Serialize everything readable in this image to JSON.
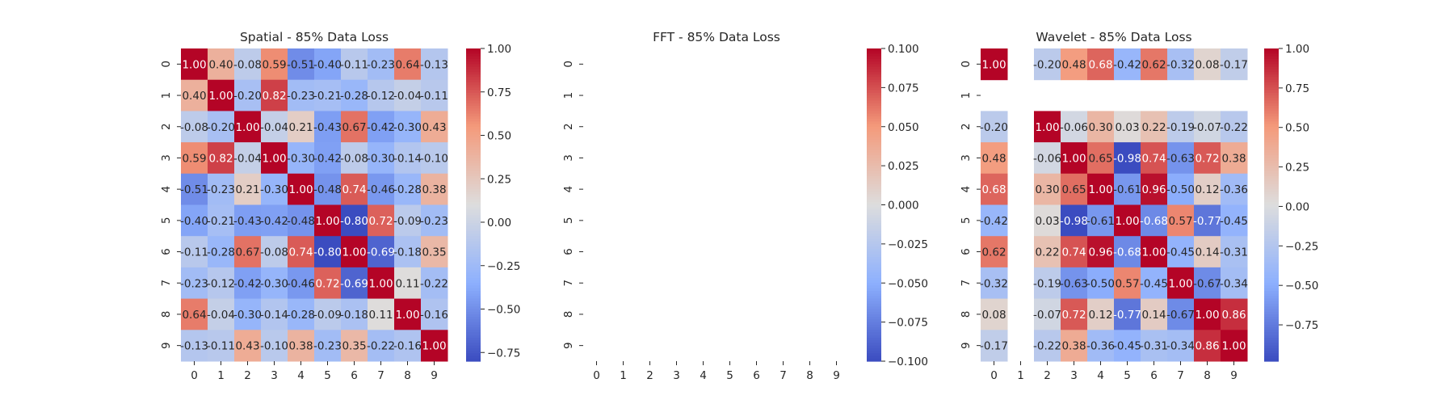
{
  "colors": {
    "background": "#ffffff",
    "text": "#262626",
    "text_on_dark": "#ffffff",
    "nan_cell": "#ffffff",
    "colormap": "coolwarm"
  },
  "chart_data": [
    {
      "type": "heatmap",
      "title": "Spatial - 85% Data Loss",
      "x_tick_labels": [
        "0",
        "1",
        "2",
        "3",
        "4",
        "5",
        "6",
        "7",
        "8",
        "9"
      ],
      "y_tick_labels": [
        "0",
        "1",
        "2",
        "3",
        "4",
        "5",
        "6",
        "7",
        "8",
        "9"
      ],
      "annotate": true,
      "value_format": "0.00",
      "colorbar": {
        "vmin": -0.8,
        "vmax": 1.0,
        "ticks": [
          -0.75,
          -0.5,
          -0.25,
          0.0,
          0.25,
          0.5,
          0.75,
          1.0
        ],
        "tick_labels": [
          "−0.75",
          "−0.50",
          "−0.25",
          "0.00",
          "0.25",
          "0.50",
          "0.75",
          "1.00"
        ]
      },
      "values": [
        [
          1.0,
          0.4,
          -0.08,
          0.59,
          -0.51,
          -0.4,
          -0.11,
          -0.23,
          0.64,
          -0.13
        ],
        [
          0.4,
          1.0,
          -0.2,
          0.82,
          -0.23,
          -0.21,
          -0.28,
          -0.12,
          -0.04,
          -0.11
        ],
        [
          -0.08,
          -0.2,
          1.0,
          -0.04,
          0.21,
          -0.43,
          0.67,
          -0.42,
          -0.3,
          0.43
        ],
        [
          0.59,
          0.82,
          -0.04,
          1.0,
          -0.3,
          -0.42,
          -0.08,
          -0.3,
          -0.14,
          -0.1
        ],
        [
          -0.51,
          -0.23,
          0.21,
          -0.3,
          1.0,
          -0.48,
          0.74,
          -0.46,
          -0.28,
          0.38
        ],
        [
          -0.4,
          -0.21,
          -0.43,
          -0.42,
          -0.48,
          1.0,
          -0.8,
          0.72,
          -0.09,
          -0.23
        ],
        [
          -0.11,
          -0.28,
          0.67,
          -0.08,
          0.74,
          -0.8,
          1.0,
          -0.69,
          -0.18,
          0.35
        ],
        [
          -0.23,
          -0.12,
          -0.42,
          -0.3,
          -0.46,
          0.72,
          -0.69,
          1.0,
          0.11,
          -0.22
        ],
        [
          0.64,
          -0.04,
          -0.3,
          -0.14,
          -0.28,
          -0.09,
          -0.18,
          0.11,
          1.0,
          -0.16
        ],
        [
          -0.13,
          -0.11,
          0.43,
          -0.1,
          0.38,
          -0.23,
          0.35,
          -0.22,
          -0.16,
          1.0
        ]
      ]
    },
    {
      "type": "heatmap",
      "title": "FFT - 85% Data Loss",
      "x_tick_labels": [
        "0",
        "1",
        "2",
        "3",
        "4",
        "5",
        "6",
        "7",
        "8",
        "9"
      ],
      "y_tick_labels": [
        "0",
        "1",
        "2",
        "3",
        "4",
        "5",
        "6",
        "7",
        "8",
        "9"
      ],
      "annotate": true,
      "value_format": "0.00",
      "colorbar": {
        "vmin": -0.1,
        "vmax": 0.1,
        "ticks": [
          -0.1,
          -0.075,
          -0.05,
          -0.025,
          0.0,
          0.025,
          0.05,
          0.075,
          0.1
        ],
        "tick_labels": [
          "−0.100",
          "−0.075",
          "−0.050",
          "−0.025",
          "0.000",
          "0.025",
          "0.050",
          "0.075",
          "0.100"
        ]
      },
      "values": [
        [
          null,
          null,
          null,
          null,
          null,
          null,
          null,
          null,
          null,
          null
        ],
        [
          null,
          null,
          null,
          null,
          null,
          null,
          null,
          null,
          null,
          null
        ],
        [
          null,
          null,
          null,
          null,
          null,
          null,
          null,
          null,
          null,
          null
        ],
        [
          null,
          null,
          null,
          null,
          null,
          null,
          null,
          null,
          null,
          null
        ],
        [
          null,
          null,
          null,
          null,
          null,
          null,
          null,
          null,
          null,
          null
        ],
        [
          null,
          null,
          null,
          null,
          null,
          null,
          null,
          null,
          null,
          null
        ],
        [
          null,
          null,
          null,
          null,
          null,
          null,
          null,
          null,
          null,
          null
        ],
        [
          null,
          null,
          null,
          null,
          null,
          null,
          null,
          null,
          null,
          null
        ],
        [
          null,
          null,
          null,
          null,
          null,
          null,
          null,
          null,
          null,
          null
        ],
        [
          null,
          null,
          null,
          null,
          null,
          null,
          null,
          null,
          null,
          null
        ]
      ]
    },
    {
      "type": "heatmap",
      "title": "Wavelet - 85% Data Loss",
      "x_tick_labels": [
        "0",
        "1",
        "2",
        "3",
        "4",
        "5",
        "6",
        "7",
        "8",
        "9"
      ],
      "y_tick_labels": [
        "0",
        "1",
        "2",
        "3",
        "4",
        "5",
        "6",
        "7",
        "8",
        "9"
      ],
      "annotate": true,
      "value_format": "0.00",
      "colorbar": {
        "vmin": -0.98,
        "vmax": 1.0,
        "ticks": [
          -0.75,
          -0.5,
          -0.25,
          0.0,
          0.25,
          0.5,
          0.75,
          1.0
        ],
        "tick_labels": [
          "−0.75",
          "−0.50",
          "−0.25",
          "0.00",
          "0.25",
          "0.50",
          "0.75",
          "1.00"
        ]
      },
      "values": [
        [
          1.0,
          null,
          -0.2,
          0.48,
          0.68,
          -0.42,
          0.62,
          -0.32,
          0.08,
          -0.17
        ],
        [
          null,
          null,
          null,
          null,
          null,
          null,
          null,
          null,
          null,
          null
        ],
        [
          -0.2,
          null,
          1.0,
          -0.06,
          0.3,
          0.03,
          0.22,
          -0.19,
          -0.07,
          -0.22
        ],
        [
          0.48,
          null,
          -0.06,
          1.0,
          0.65,
          -0.98,
          0.74,
          -0.63,
          0.72,
          0.38
        ],
        [
          0.68,
          null,
          0.3,
          0.65,
          1.0,
          -0.61,
          0.96,
          -0.5,
          0.12,
          -0.36
        ],
        [
          -0.42,
          null,
          0.03,
          -0.98,
          -0.61,
          1.0,
          -0.68,
          0.57,
          -0.77,
          -0.45
        ],
        [
          0.62,
          null,
          0.22,
          0.74,
          0.96,
          -0.68,
          1.0,
          -0.45,
          0.14,
          -0.31
        ],
        [
          -0.32,
          null,
          -0.19,
          -0.63,
          -0.5,
          0.57,
          -0.45,
          1.0,
          -0.67,
          -0.34
        ],
        [
          0.08,
          null,
          -0.07,
          0.72,
          0.12,
          -0.77,
          0.14,
          -0.67,
          1.0,
          0.86
        ],
        [
          -0.17,
          null,
          -0.22,
          0.38,
          -0.36,
          -0.45,
          -0.31,
          -0.34,
          0.86,
          1.0
        ]
      ]
    }
  ]
}
